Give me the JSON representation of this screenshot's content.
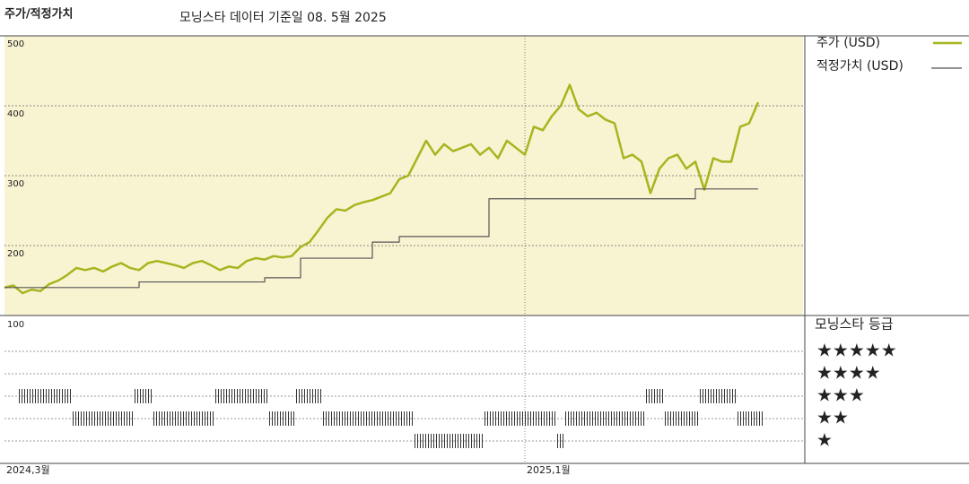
{
  "chart_data": {
    "type": "line",
    "title": "주가/적정가치",
    "subtitle": "모닝스타 데이터 기준일 08. 5월 2025",
    "categories": [
      "2024,3월",
      null,
      null,
      null,
      null,
      null,
      null,
      null,
      null,
      null,
      null,
      null,
      null,
      null,
      null,
      null,
      null,
      null,
      null,
      null,
      null,
      null,
      null,
      null,
      null,
      null,
      null,
      null,
      null,
      null,
      null,
      null,
      null,
      null,
      null,
      null,
      null,
      null,
      null,
      null,
      null,
      null,
      null,
      null,
      null,
      null,
      null,
      null,
      null,
      null,
      null,
      null,
      null,
      null,
      null,
      null,
      null,
      null,
      "2025,1월",
      null,
      null,
      null,
      null,
      null,
      null,
      null,
      null,
      null,
      null,
      null,
      null,
      null,
      null,
      null,
      null,
      null,
      null,
      null,
      null,
      null,
      null,
      null,
      null,
      null,
      null,
      null,
      null,
      null,
      null,
      null
    ],
    "series": [
      {
        "name": "주가 (USD)",
        "color": "#a6b51e",
        "width": 2.5,
        "step": false,
        "values": [
          140,
          143,
          132,
          137,
          135,
          145,
          150,
          158,
          168,
          165,
          168,
          163,
          170,
          175,
          168,
          165,
          175,
          178,
          175,
          172,
          168,
          175,
          178,
          172,
          165,
          170,
          168,
          178,
          182,
          180,
          185,
          183,
          185,
          198,
          205,
          222,
          240,
          252,
          250,
          258,
          262,
          265,
          270,
          275,
          295,
          300,
          325,
          350,
          330,
          345,
          335,
          340,
          345,
          330,
          340,
          325,
          350,
          340,
          330,
          370,
          365,
          385,
          400,
          430,
          395,
          385,
          390,
          380,
          375,
          325,
          330,
          320,
          275,
          310,
          325,
          330,
          310,
          320,
          280,
          325,
          320,
          320,
          370,
          375,
          405,
          null,
          null,
          null,
          null,
          null
        ]
      },
      {
        "name": "적정가치 (USD)",
        "color": "#555555",
        "width": 1.2,
        "step": true,
        "values": [
          140,
          140,
          140,
          140,
          140,
          140,
          140,
          140,
          140,
          140,
          140,
          140,
          140,
          140,
          140,
          148,
          148,
          148,
          148,
          148,
          148,
          148,
          148,
          148,
          148,
          148,
          148,
          148,
          148,
          154,
          154,
          154,
          154,
          182,
          182,
          182,
          182,
          182,
          182,
          182,
          182,
          205,
          205,
          205,
          213,
          213,
          213,
          213,
          213,
          213,
          213,
          213,
          213,
          213,
          267,
          267,
          267,
          267,
          267,
          267,
          267,
          267,
          267,
          267,
          267,
          267,
          267,
          267,
          267,
          267,
          267,
          267,
          267,
          267,
          267,
          267,
          267,
          281,
          281,
          281,
          281,
          281,
          281,
          281,
          281,
          null,
          null,
          null,
          null,
          null
        ]
      }
    ],
    "ylim": [
      100,
      500
    ],
    "yticks": [
      200,
      300,
      400,
      500
    ],
    "background": "#f8f4d2",
    "ratings": {
      "title": "모닝스타 등급",
      "axis_label": "100",
      "legend": [
        "★★★★★",
        "★★★★",
        "★★★",
        "★★",
        "★"
      ],
      "values": [
        null,
        null,
        3,
        3,
        3,
        3,
        3,
        3,
        2,
        2,
        2,
        2,
        2,
        2,
        2,
        3,
        3,
        2,
        2,
        2,
        2,
        2,
        2,
        2,
        3,
        3,
        3,
        3,
        3,
        3,
        2,
        2,
        2,
        3,
        3,
        3,
        2,
        2,
        2,
        2,
        2,
        2,
        2,
        2,
        2,
        2,
        1,
        1,
        1,
        1,
        1,
        1,
        1,
        1,
        2,
        2,
        2,
        2,
        2,
        2,
        2,
        2,
        1,
        2,
        2,
        2,
        2,
        2,
        2,
        2,
        2,
        2,
        3,
        3,
        2,
        2,
        2,
        2,
        3,
        3,
        3,
        3,
        2,
        2,
        2,
        null,
        null,
        null,
        null,
        null
      ]
    }
  }
}
